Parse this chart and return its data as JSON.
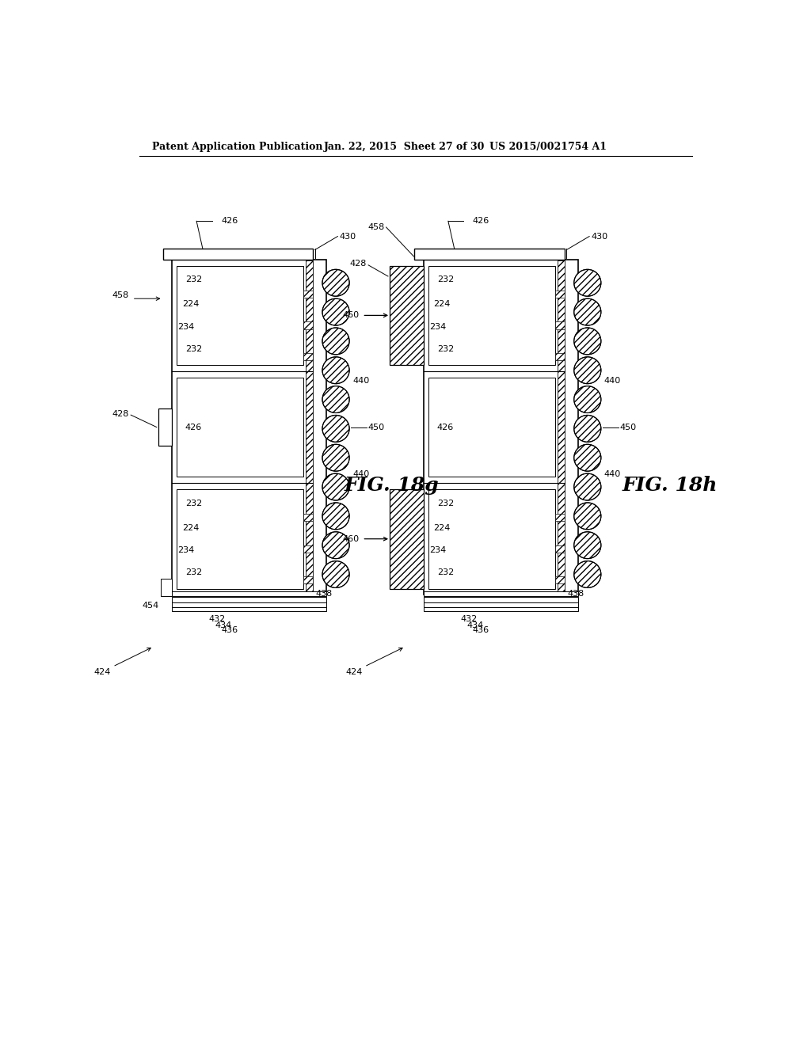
{
  "bg_color": "#ffffff",
  "header_left": "Patent Application Publication",
  "header_mid": "Jan. 22, 2015  Sheet 27 of 30",
  "header_right": "US 2015/0021754 A1",
  "fig_label_g": "FIG. 18g",
  "fig_label_h": "FIG. 18h"
}
